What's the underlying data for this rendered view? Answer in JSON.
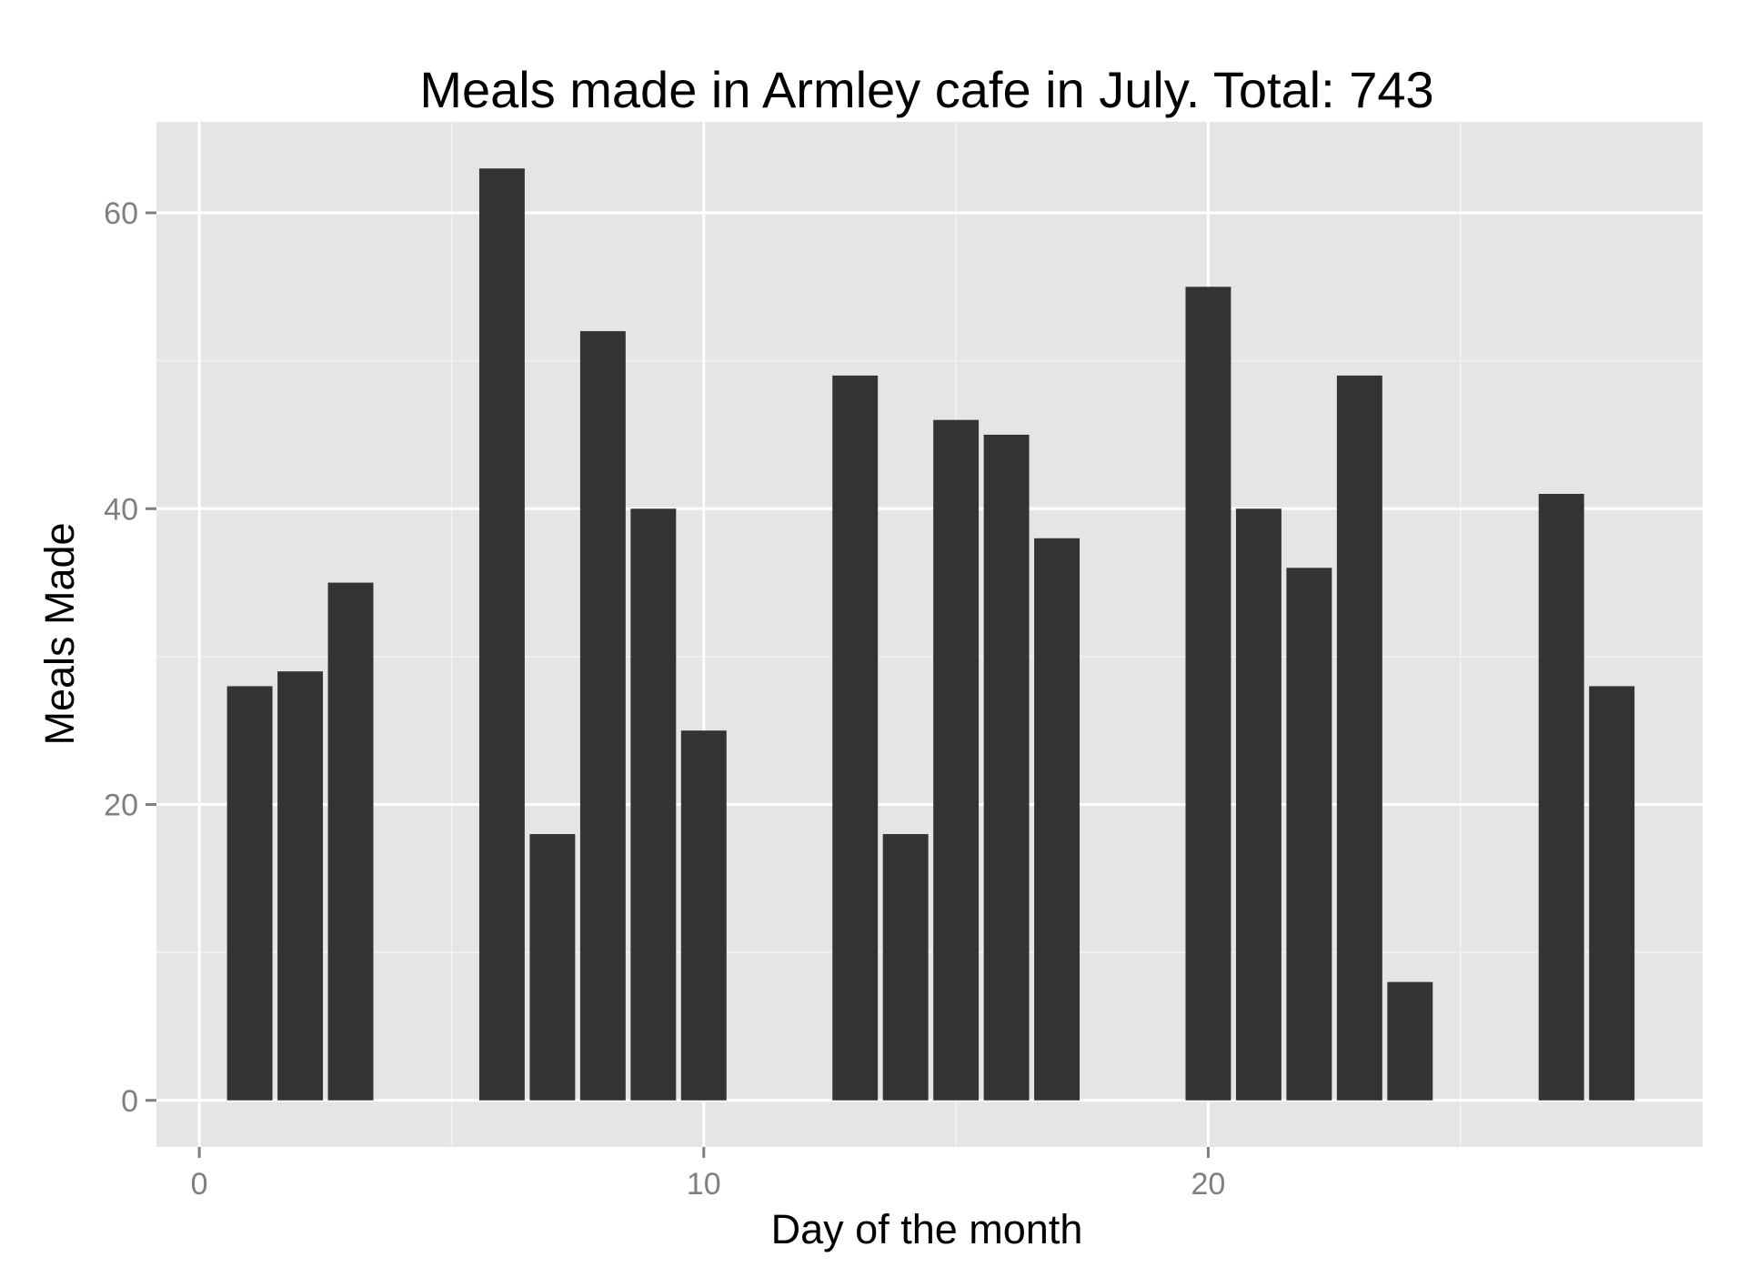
{
  "chart_data": {
    "type": "bar",
    "title": "Meals made in Armley cafe in July. Total: 743",
    "xlabel": "Day of the month",
    "ylabel": "Meals Made",
    "x": [
      1,
      2,
      3,
      6,
      7,
      8,
      9,
      10,
      13,
      14,
      15,
      16,
      17,
      20,
      21,
      22,
      23,
      24,
      27,
      28
    ],
    "values": [
      28,
      29,
      35,
      63,
      18,
      52,
      40,
      25,
      49,
      18,
      46,
      45,
      38,
      55,
      40,
      36,
      49,
      8,
      41,
      28
    ],
    "xlim": [
      -0.85,
      29.8
    ],
    "ylim": [
      -3.15,
      66.15
    ],
    "x_ticks": [
      0,
      10,
      20
    ],
    "x_tick_labels": [
      "0",
      "10",
      "20"
    ],
    "y_ticks": [
      0,
      20,
      40,
      60
    ],
    "y_tick_labels": [
      "0",
      "20",
      "40",
      "60"
    ],
    "grid": true,
    "colors": {
      "bar": "#333333",
      "panel_background": "#e5e5e5",
      "grid_major": "#ffffff",
      "grid_minor": "#f2f2f2",
      "tick_label": "#7f7f7f"
    }
  }
}
